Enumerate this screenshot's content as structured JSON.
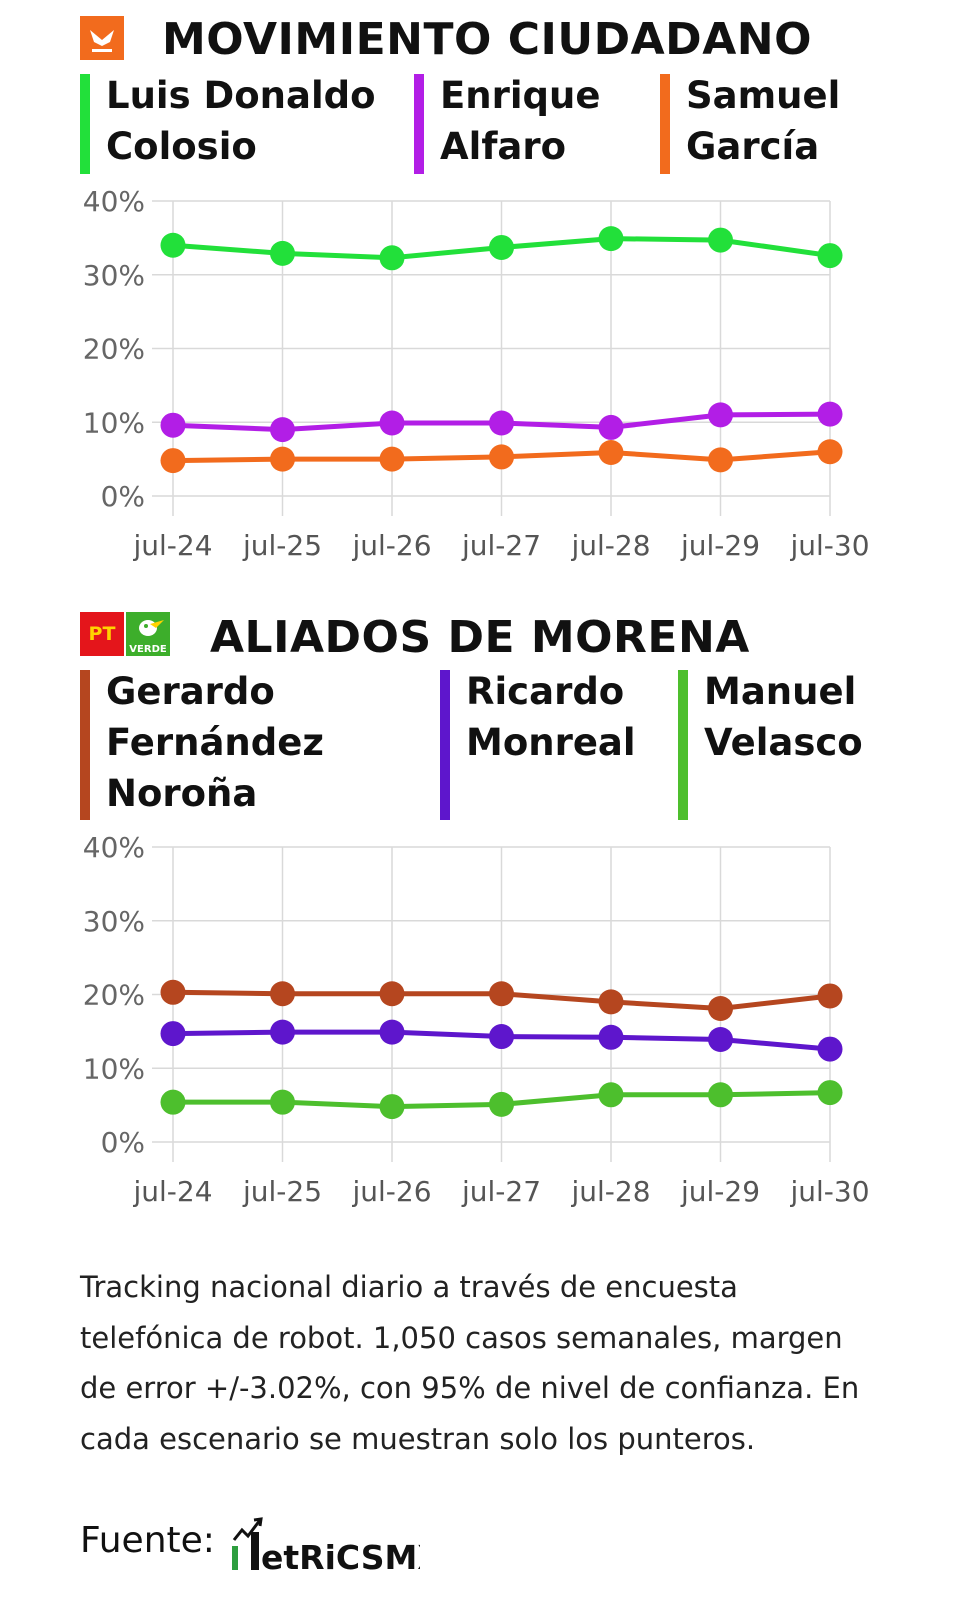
{
  "sections": [
    {
      "title": "MOVIMIENTO CIUDADANO",
      "logo": {
        "name": "movimiento-ciudadano-logo",
        "color": "#F26B1D"
      },
      "candidates": [
        {
          "lines": [
            "Luis Donaldo",
            "Colosio"
          ],
          "color": "#22E03A"
        },
        {
          "lines": [
            "Enrique",
            "Alfaro"
          ],
          "color": "#B21EE6"
        },
        {
          "lines": [
            "Samuel",
            "García"
          ],
          "color": "#F26B1D"
        }
      ]
    },
    {
      "title": "ALIADOS DE MORENA",
      "logo": {
        "name": "pt-verde-logos",
        "pt_text": "PT",
        "verde_text": "VERDE",
        "pt_color": "#E4151B",
        "verde_color": "#3DAE2B"
      },
      "candidates": [
        {
          "lines": [
            "Gerardo",
            "Fernández",
            "Noroña"
          ],
          "color": "#B5461F"
        },
        {
          "lines": [
            "Ricardo",
            "Monreal"
          ],
          "color": "#5E16CC"
        },
        {
          "lines": [
            "Manuel",
            "Velasco"
          ],
          "color": "#4DBF2D"
        }
      ]
    }
  ],
  "chart_data": [
    {
      "type": "line",
      "x": [
        "jul-24",
        "jul-25",
        "jul-26",
        "jul-27",
        "jul-28",
        "jul-29",
        "jul-30"
      ],
      "y_ticks": [
        "40%",
        "30%",
        "20%",
        "10%",
        "0%"
      ],
      "ylim": [
        0,
        40
      ],
      "grid": true,
      "series": [
        {
          "name": "Luis Donaldo Colosio",
          "color": "#22E03A",
          "values": [
            34.0,
            32.9,
            32.3,
            33.7,
            34.9,
            34.7,
            32.6
          ]
        },
        {
          "name": "Enrique Alfaro",
          "color": "#B21EE6",
          "values": [
            9.6,
            9.0,
            9.9,
            9.9,
            9.3,
            11.0,
            11.1
          ]
        },
        {
          "name": "Samuel García",
          "color": "#F26B1D",
          "values": [
            4.8,
            5.0,
            5.0,
            5.3,
            5.9,
            4.9,
            6.0
          ]
        }
      ]
    },
    {
      "type": "line",
      "x": [
        "jul-24",
        "jul-25",
        "jul-26",
        "jul-27",
        "jul-28",
        "jul-29",
        "jul-30"
      ],
      "y_ticks": [
        "40%",
        "30%",
        "20%",
        "10%",
        "0%"
      ],
      "ylim": [
        0,
        40
      ],
      "grid": true,
      "series": [
        {
          "name": "Gerardo Fernández Noroña",
          "color": "#B5461F",
          "values": [
            20.3,
            20.1,
            20.1,
            20.1,
            19.0,
            18.1,
            19.8
          ]
        },
        {
          "name": "Ricardo Monreal",
          "color": "#5E16CC",
          "values": [
            14.7,
            14.9,
            14.9,
            14.3,
            14.2,
            13.9,
            12.6
          ]
        },
        {
          "name": "Manuel Velasco",
          "color": "#4DBF2D",
          "values": [
            5.4,
            5.4,
            4.8,
            5.1,
            6.4,
            6.4,
            6.7
          ]
        }
      ]
    }
  ],
  "footnote": "Tracking nacional diario a través de encuesta telefónica de robot. 1,050 casos semanales, margen de error +/-3.02%, con 95% de nivel de confianza. En cada escenario se muestran solo los punteros.",
  "source": {
    "label": "Fuente:",
    "brand": "MetricsMX",
    "brand_display": "etRiCSMX"
  }
}
